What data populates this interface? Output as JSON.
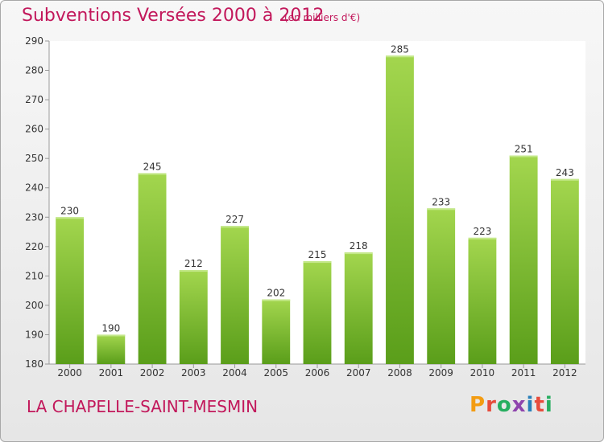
{
  "header": {
    "title": "Subventions Versées 2000 à 2012",
    "unit": "(en milliers d'€)"
  },
  "footer": {
    "commune": "LA CHAPELLE-SAINT-MESMIN",
    "logo_text": "Proxiti",
    "logo_colors": [
      "#f39c12",
      "#e74c3c",
      "#27ae60",
      "#8e44ad",
      "#2980b9",
      "#e74c3c",
      "#27ae60"
    ]
  },
  "colors": {
    "accent": "#c2185b",
    "bar_top": "#a3d64e",
    "bar_bottom": "#5a9e1a"
  },
  "chart_data": {
    "type": "bar",
    "title": "Subventions Versées 2000 à 2012",
    "subtitle": "(en milliers d'€)",
    "categories": [
      "2000",
      "2001",
      "2002",
      "2003",
      "2004",
      "2005",
      "2006",
      "2007",
      "2008",
      "2009",
      "2010",
      "2011",
      "2012"
    ],
    "values": [
      230,
      190,
      245,
      212,
      227,
      202,
      215,
      218,
      285,
      233,
      223,
      251,
      243
    ],
    "ylim": [
      180,
      290
    ],
    "yticks": [
      180,
      190,
      200,
      210,
      220,
      230,
      240,
      250,
      260,
      270,
      280,
      290
    ],
    "xlabel": "",
    "ylabel": "",
    "grid": false,
    "legend": "none"
  }
}
